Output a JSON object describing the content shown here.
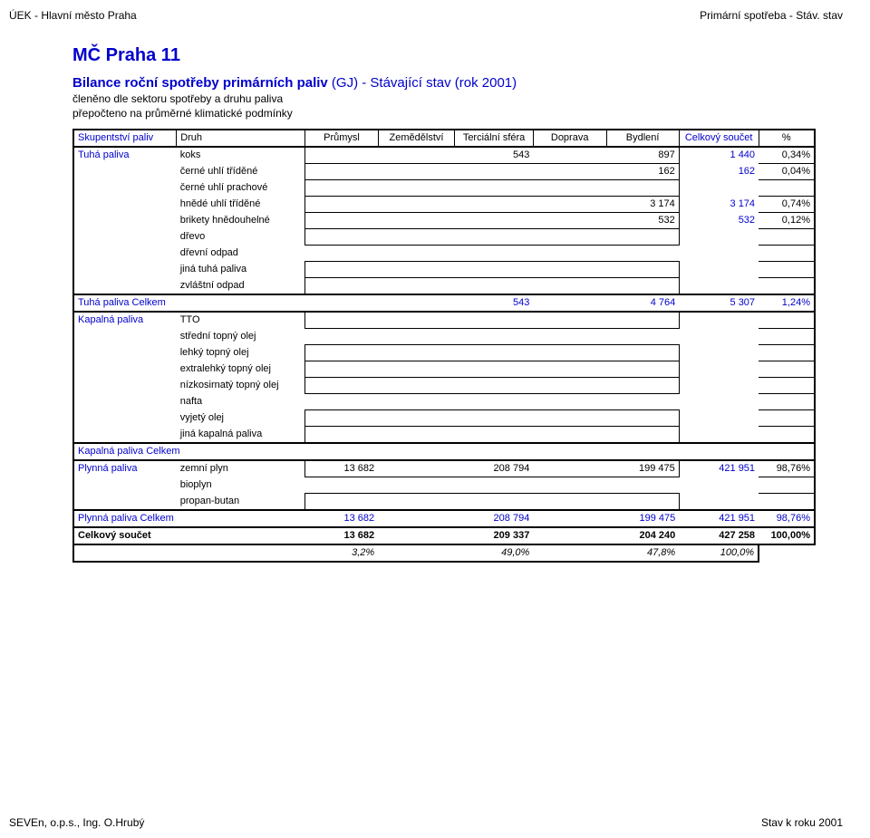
{
  "header": {
    "left": "ÚEK - Hlavní město Praha",
    "right": "Primární spotřeba - Stáv. stav"
  },
  "title": "MČ Praha 11",
  "subtitle_bold": "Bilance roční spotřeby primárních paliv",
  "subtitle_rest": "(GJ) - Stávající stav (rok 2001)",
  "desc1": "členěno dle sektoru spotřeby a druhu paliva",
  "desc2": "přepočteno na průměrné klimatické podmínky",
  "columns": {
    "skup": "Skupentství paliv",
    "druh": "Druh",
    "prum": "Průmysl",
    "zem": "Zemědělství",
    "terc": "Terciální sféra",
    "dopr": "Doprava",
    "bydl": "Bydlení",
    "celk": "Celkový součet",
    "pct": "%"
  },
  "rows": {
    "tuha_label": "Tuhá paliva",
    "koks": {
      "druh": "koks",
      "terc": "543",
      "bydl": "897",
      "celk": "1 440",
      "pct": "0,34%"
    },
    "cut": {
      "druh": "černé uhlí tříděné",
      "bydl": "162",
      "celk": "162",
      "pct": "0,04%"
    },
    "cup": {
      "druh": "černé uhlí prachové"
    },
    "hut": {
      "druh": "hnědé uhlí tříděné",
      "bydl": "3 174",
      "celk": "3 174",
      "pct": "0,74%"
    },
    "brik": {
      "druh": "brikety hnědouhelné",
      "bydl": "532",
      "celk": "532",
      "pct": "0,12%"
    },
    "drevo": {
      "druh": "dřevo"
    },
    "drevni": {
      "druh": "dřevní odpad"
    },
    "jina_t": {
      "druh": "jiná tuhá paliva"
    },
    "zvl": {
      "druh": "zvláštní odpad"
    },
    "tuha_sum": {
      "label": "Tuhá paliva  Celkem",
      "terc": "543",
      "bydl": "4 764",
      "celk": "5 307",
      "pct": "1,24%"
    },
    "kap_label": "Kapalná paliva",
    "tto": {
      "druh": "TTO"
    },
    "sto": {
      "druh": "střední topný olej"
    },
    "lto": {
      "druh": "lehký topný olej"
    },
    "eto": {
      "druh": "extralehký topný olej"
    },
    "nto": {
      "druh": "nízkosirnatý topný olej"
    },
    "nafta": {
      "druh": "nafta"
    },
    "vyj": {
      "druh": "vyjetý olej"
    },
    "jina_k": {
      "druh": "jiná kapalná paliva"
    },
    "kap_sum": {
      "label": "Kapalná paliva Celkem"
    },
    "plyn_label": "Plynná paliva",
    "zp": {
      "druh": "zemní plyn",
      "prum": "13 682",
      "terc": "208 794",
      "bydl": "199 475",
      "celk": "421 951",
      "pct": "98,76%"
    },
    "bio": {
      "druh": "bioplyn"
    },
    "pb": {
      "druh": "propan-butan"
    },
    "plyn_sum": {
      "label": "Plynná paliva Celkem",
      "prum": "13 682",
      "terc": "208 794",
      "bydl": "199 475",
      "celk": "421 951",
      "pct": "98,76%"
    },
    "grand": {
      "label": "Celkový součet",
      "prum": "13 682",
      "terc": "209 337",
      "bydl": "204 240",
      "celk": "427 258",
      "pct": "100,00%"
    },
    "pctrow": {
      "prum": "3,2%",
      "terc": "49,0%",
      "bydl": "47,8%",
      "celk": "100,0%"
    }
  },
  "footer": {
    "left": "SEVEn, o.p.s., Ing. O.Hrubý",
    "right": "Stav k roku 2001"
  }
}
